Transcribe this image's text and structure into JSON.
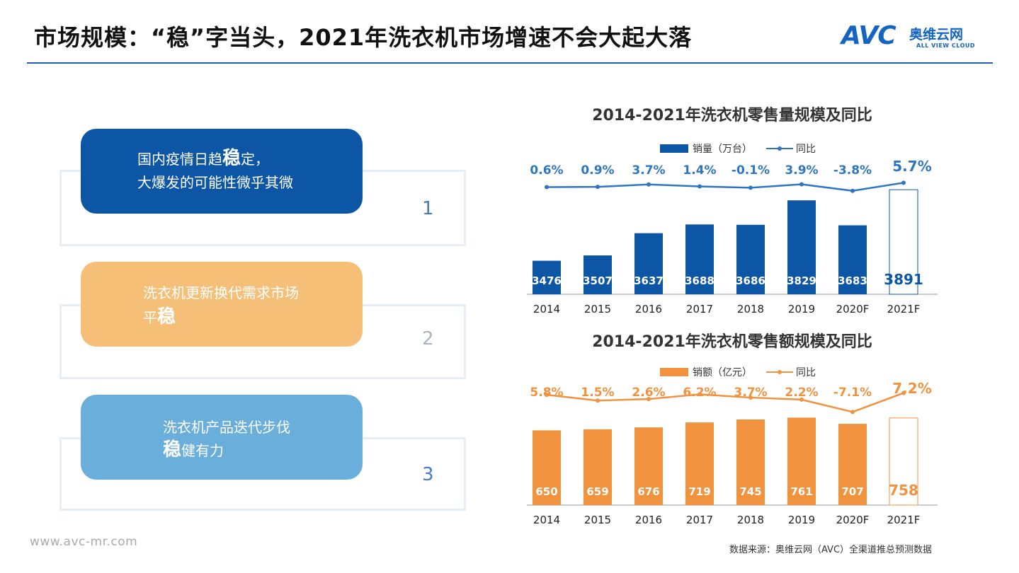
{
  "header": {
    "title": "市场规模：“稳”字当头，2021年洗衣机市场增速不会大起大落",
    "logo_mark": "AVC",
    "logo_cn": "奥维云网",
    "logo_en": "ALL VIEW CLOUD"
  },
  "cards": [
    {
      "line1_pre": "国内疫情日趋",
      "line1_bold": "稳",
      "line1_post": "定，",
      "line2_pre": "大爆发的可能性微乎其微",
      "line2_bold": "",
      "line2_post": "",
      "number": "1"
    },
    {
      "line1_pre": "洗衣机更新换代需求市场",
      "line1_bold": "",
      "line1_post": "",
      "line2_pre": "平",
      "line2_bold": "稳",
      "line2_post": "",
      "number": "2"
    },
    {
      "line1_pre": "洗衣机产品迭代步伐",
      "line1_bold": "",
      "line1_post": "",
      "line2_pre": "",
      "line2_bold": "稳",
      "line2_post": "健有力",
      "number": "3"
    }
  ],
  "colors": {
    "card1": "#0d56a6",
    "card2": "#f5bf78",
    "card3": "#6aaedb",
    "volume_bar": "#0d56a6",
    "volume_line": "#2e75c2",
    "value_bar": "#f0923e",
    "value_line": "#f0923e"
  },
  "chart_data": [
    {
      "type": "bar",
      "title": "2014-2021年洗衣机零售量规模及同比",
      "categories": [
        "2014",
        "2015",
        "2016",
        "2017",
        "2018",
        "2019",
        "2020F",
        "2021F"
      ],
      "series": [
        {
          "name": "销量（万台）",
          "values": [
            3476,
            3507,
            3637,
            3688,
            3686,
            3829,
            3683,
            3891
          ],
          "labels": [
            "3476",
            "3507",
            "3637",
            "3688",
            "3686",
            "3829",
            "3683",
            "3891"
          ]
        },
        {
          "name": "同比",
          "type": "line",
          "values": [
            0.6,
            0.9,
            3.7,
            1.4,
            -0.1,
            3.9,
            -3.8,
            5.7
          ],
          "labels": [
            "0.6%",
            "0.9%",
            "3.7%",
            "1.4%",
            "-0.1%",
            "3.9%",
            "-3.8%",
            "5.7%"
          ]
        }
      ],
      "highlight_last_outline": true,
      "legend": "top"
    },
    {
      "type": "bar",
      "title": "2014-2021年洗衣机零售额规模及同比",
      "categories": [
        "2014",
        "2015",
        "2016",
        "2017",
        "2018",
        "2019",
        "2020F",
        "2021F"
      ],
      "series": [
        {
          "name": "销额（亿元）",
          "values": [
            650,
            659,
            676,
            719,
            745,
            761,
            707,
            758
          ],
          "labels": [
            "650",
            "659",
            "676",
            "719",
            "745",
            "761",
            "707",
            "758"
          ]
        },
        {
          "name": "同比",
          "type": "line",
          "values": [
            5.8,
            1.5,
            2.6,
            6.2,
            3.7,
            2.2,
            -7.1,
            7.2
          ],
          "labels": [
            "5.8%",
            "1.5%",
            "2.6%",
            "6.2%",
            "3.7%",
            "2.2%",
            "-7.1%",
            "7.2%"
          ]
        }
      ],
      "highlight_last_outline": true,
      "legend": "top"
    }
  ],
  "footer": {
    "website": "www.avc-mr.com",
    "source": "数据来源：奥维云网（AVC）全渠道推总预测数据"
  }
}
